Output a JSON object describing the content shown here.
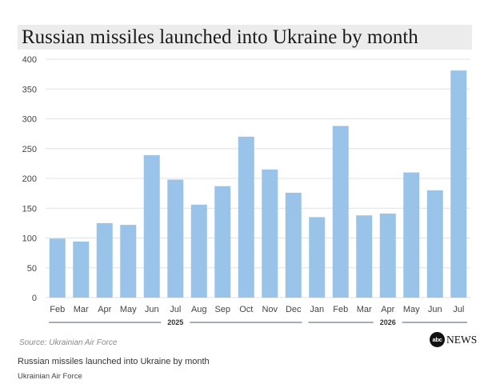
{
  "chart_data": {
    "type": "bar",
    "title": "Russian missiles launched into Ukraine by month",
    "categories": [
      "Feb",
      "Mar",
      "Apr",
      "May",
      "Jun",
      "Jul",
      "Aug",
      "Sep",
      "Oct",
      "Nov",
      "Dec",
      "Jan",
      "Feb",
      "Mar",
      "Apr",
      "May",
      "Jun",
      "Jul"
    ],
    "values": [
      99,
      94,
      125,
      122,
      239,
      198,
      156,
      187,
      270,
      215,
      176,
      135,
      288,
      138,
      141,
      210,
      180,
      381
    ],
    "groups": [
      {
        "label": "2025",
        "from": 0,
        "to": 10
      },
      {
        "label": "2026",
        "from": 11,
        "to": 17
      }
    ],
    "yticks": [
      0,
      50,
      100,
      150,
      200,
      250,
      300,
      350,
      400
    ],
    "ylim": [
      0,
      400
    ],
    "grid": true,
    "bar_color": "#99c3e8",
    "grid_color": "#e2e2e2"
  },
  "source": "Source: Ukrainian Air Force",
  "logo": {
    "circle_text": "abc",
    "word": "NEWS"
  },
  "caption": "Russian missiles launched into Ukraine by month",
  "credit": "Ukrainian Air Force"
}
